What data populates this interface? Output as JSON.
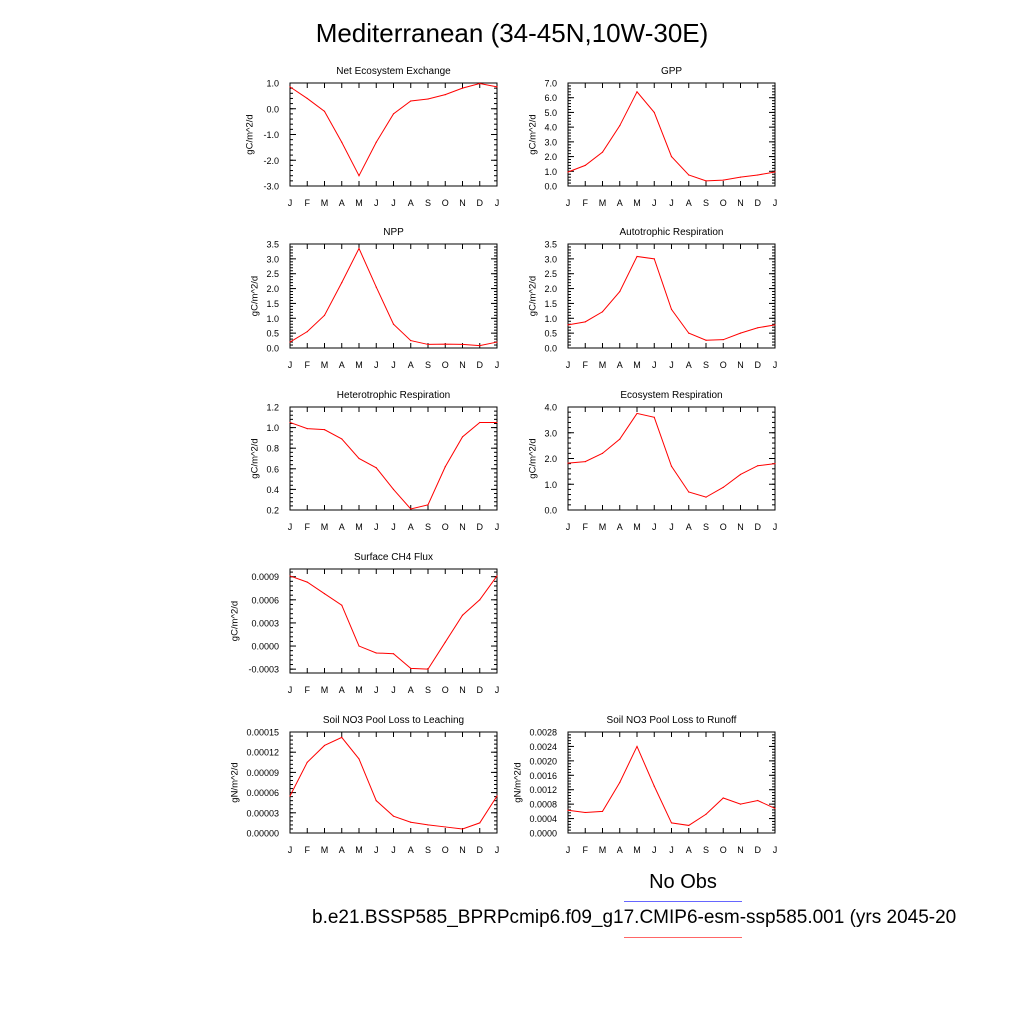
{
  "page": {
    "title": "Mediterranean (34-45N,10W-30E)",
    "legend": {
      "obs_label": "No Obs",
      "case_label": "b.e21.BSSP585_BPRPcmip6.f09_g17.CMIP6-esm-ssp585.001 (yrs 2045-20",
      "obs_color": "#6666ff",
      "case_color": "#ff6666"
    },
    "line_color": "#ff0000"
  },
  "chart_data": [
    {
      "type": "line",
      "title": "Net Ecosystem Exchange",
      "ylabel": "gC/m^2/d",
      "categories": [
        "J",
        "F",
        "M",
        "A",
        "M",
        "J",
        "J",
        "A",
        "S",
        "O",
        "N",
        "D",
        "J"
      ],
      "ylim": [
        -3.0,
        1.0
      ],
      "yticks": [
        -3,
        -2,
        -1,
        0,
        1
      ],
      "ytick_labels": [
        "-3.0",
        "-2.0",
        "-1.0",
        "0.0",
        "1.0"
      ],
      "values": [
        0.85,
        0.4,
        -0.1,
        -1.3,
        -2.6,
        -1.3,
        -0.2,
        0.3,
        0.38,
        0.55,
        0.8,
        0.98,
        0.85
      ]
    },
    {
      "type": "line",
      "title": "GPP",
      "ylabel": "gC/m^2/d",
      "categories": [
        "J",
        "F",
        "M",
        "A",
        "M",
        "J",
        "J",
        "A",
        "S",
        "O",
        "N",
        "D",
        "J"
      ],
      "ylim": [
        0,
        7
      ],
      "yticks": [
        0,
        1,
        2,
        3,
        4,
        5,
        6,
        7
      ],
      "ytick_labels": [
        "0.0",
        "1.0",
        "2.0",
        "3.0",
        "4.0",
        "5.0",
        "6.0",
        "7.0"
      ],
      "values": [
        0.95,
        1.4,
        2.3,
        4.1,
        6.4,
        5.0,
        2.0,
        0.75,
        0.35,
        0.4,
        0.6,
        0.75,
        0.95
      ]
    },
    {
      "type": "line",
      "title": "NPP",
      "ylabel": "gC/m^2/d",
      "categories": [
        "J",
        "F",
        "M",
        "A",
        "M",
        "J",
        "J",
        "A",
        "S",
        "O",
        "N",
        "D",
        "J"
      ],
      "ylim": [
        0,
        3.5
      ],
      "yticks": [
        0,
        0.5,
        1,
        1.5,
        2,
        2.5,
        3,
        3.5
      ],
      "ytick_labels": [
        "0.0",
        "0.5",
        "1.0",
        "1.5",
        "2.0",
        "2.5",
        "3.0",
        "3.5"
      ],
      "values": [
        0.2,
        0.55,
        1.1,
        2.2,
        3.35,
        2.05,
        0.8,
        0.25,
        0.12,
        0.13,
        0.12,
        0.08,
        0.2
      ]
    },
    {
      "type": "line",
      "title": "Autotrophic Respiration",
      "ylabel": "gC/m^2/d",
      "categories": [
        "J",
        "F",
        "M",
        "A",
        "M",
        "J",
        "J",
        "A",
        "S",
        "O",
        "N",
        "D",
        "J"
      ],
      "ylim": [
        0,
        3.5
      ],
      "yticks": [
        0,
        0.5,
        1,
        1.5,
        2,
        2.5,
        3,
        3.5
      ],
      "ytick_labels": [
        "0.0",
        "0.5",
        "1.0",
        "1.5",
        "2.0",
        "2.5",
        "3.0",
        "3.5"
      ],
      "values": [
        0.78,
        0.88,
        1.22,
        1.9,
        3.08,
        3.0,
        1.3,
        0.5,
        0.26,
        0.28,
        0.5,
        0.68,
        0.78
      ]
    },
    {
      "type": "line",
      "title": "Heterotrophic Respiration",
      "ylabel": "gC/m^2/d",
      "categories": [
        "J",
        "F",
        "M",
        "A",
        "M",
        "J",
        "J",
        "A",
        "S",
        "O",
        "N",
        "D",
        "J"
      ],
      "ylim": [
        0.2,
        1.2
      ],
      "yticks": [
        0.2,
        0.4,
        0.6,
        0.8,
        1.0,
        1.2
      ],
      "ytick_labels": [
        "0.2",
        "0.4",
        "0.6",
        "0.8",
        "1.0",
        "1.2"
      ],
      "values": [
        1.05,
        0.99,
        0.98,
        0.89,
        0.7,
        0.61,
        0.4,
        0.21,
        0.25,
        0.62,
        0.91,
        1.05,
        1.05
      ]
    },
    {
      "type": "line",
      "title": "Ecosystem Respiration",
      "ylabel": "gC/m^2/d",
      "categories": [
        "J",
        "F",
        "M",
        "A",
        "M",
        "J",
        "J",
        "A",
        "S",
        "O",
        "N",
        "D",
        "J"
      ],
      "ylim": [
        0,
        4
      ],
      "yticks": [
        0,
        1,
        2,
        3,
        4
      ],
      "ytick_labels": [
        "0.0",
        "1.0",
        "2.0",
        "3.0",
        "4.0"
      ],
      "values": [
        1.82,
        1.88,
        2.2,
        2.75,
        3.75,
        3.6,
        1.7,
        0.7,
        0.5,
        0.88,
        1.38,
        1.72,
        1.8
      ]
    },
    {
      "type": "line",
      "title": "Surface CH4 Flux",
      "ylabel": "gC/m^2/d",
      "categories": [
        "J",
        "F",
        "M",
        "A",
        "M",
        "J",
        "J",
        "A",
        "S",
        "O",
        "N",
        "D",
        "J"
      ],
      "ylim": [
        -0.00035,
        0.001
      ],
      "yticks": [
        -0.0003,
        0,
        0.0003,
        0.0006,
        0.0009
      ],
      "ytick_labels": [
        "-0.0003",
        "0.0000",
        "0.0003",
        "0.0006",
        "0.0009"
      ],
      "values": [
        0.00091,
        0.00083,
        0.00068,
        0.00053,
        0.0,
        -9e-05,
        -0.0001,
        -0.00029,
        -0.0003,
        5e-05,
        0.0004,
        0.0006,
        0.00091
      ]
    },
    {
      "type": "line",
      "title": "Soil NO3 Pool Loss to Leaching",
      "ylabel": "gN/m^2/d",
      "categories": [
        "J",
        "F",
        "M",
        "A",
        "M",
        "J",
        "J",
        "A",
        "S",
        "O",
        "N",
        "D",
        "J"
      ],
      "ylim": [
        0,
        0.00015
      ],
      "yticks": [
        0,
        3e-05,
        6e-05,
        9e-05,
        0.00012,
        0.00015
      ],
      "ytick_labels": [
        "0.00000",
        "0.00003",
        "0.00006",
        "0.00009",
        "0.00012",
        "0.00015"
      ],
      "values": [
        5.5e-05,
        0.000105,
        0.00013,
        0.000142,
        0.00011,
        4.8e-05,
        2.5e-05,
        1.6e-05,
        1.2e-05,
        9e-06,
        6e-06,
        1.5e-05,
        5.5e-05
      ]
    },
    {
      "type": "line",
      "title": "Soil NO3 Pool Loss to Runoff",
      "ylabel": "gN/m^2/d",
      "categories": [
        "J",
        "F",
        "M",
        "A",
        "M",
        "J",
        "J",
        "A",
        "S",
        "O",
        "N",
        "D",
        "J"
      ],
      "ylim": [
        0,
        0.0028
      ],
      "yticks": [
        0,
        0.0004,
        0.0008,
        0.0012,
        0.0016,
        0.002,
        0.0024,
        0.0028
      ],
      "ytick_labels": [
        "0.0000",
        "0.0004",
        "0.0008",
        "0.0012",
        "0.0016",
        "0.0020",
        "0.0024",
        "0.0028"
      ],
      "values": [
        0.00063,
        0.00057,
        0.0006,
        0.0014,
        0.0024,
        0.0013,
        0.00028,
        0.00021,
        0.00052,
        0.00097,
        0.0008,
        0.0009,
        0.00068
      ]
    }
  ]
}
